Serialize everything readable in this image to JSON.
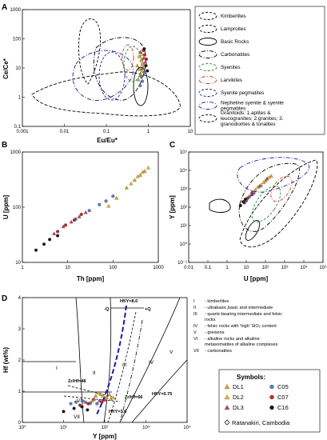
{
  "chart_data": [
    {
      "panel": "A",
      "type": "scatter",
      "xlabel": "Eu/Eu*",
      "ylabel": "Ce/Ce*",
      "x_scale": "log",
      "y_scale": "log",
      "xlim": [
        0.001,
        10
      ],
      "ylim": [
        0.1,
        1000
      ],
      "x_ticks": [
        "0.001",
        "0.01",
        "0.1",
        "1",
        "10"
      ],
      "y_ticks": [
        "0.1",
        "1",
        "10",
        "100",
        "1000"
      ],
      "field_labels": [
        "1",
        "2",
        "3"
      ],
      "legend": [
        {
          "label": "Kimberlites",
          "style": "dashed",
          "color": "#000000"
        },
        {
          "label": "Lamproites",
          "style": "dashed",
          "color": "#000000"
        },
        {
          "label": "Basic Rocks",
          "style": "solid",
          "color": "#000000"
        },
        {
          "label": "Carbonatites",
          "style": "dashdot",
          "color": "#000000"
        },
        {
          "label": "Syenites",
          "style": "dashed",
          "color": "#2a8a3a"
        },
        {
          "label": "Larvikites",
          "style": "dashdot",
          "color": "#c0392b"
        },
        {
          "label": "Syenite pegmatites",
          "style": "dashed",
          "color": "#1a1a9a"
        },
        {
          "label": "Nepheline syenite & syenite pegmatites",
          "style": "dashdot",
          "color": "#1a1a9a"
        },
        {
          "label": "Granitoids: 1.aplites & leucogranites; 2.granites; 3. granodiorites & tonalites",
          "style": "dashed",
          "color": "#000000"
        }
      ],
      "series": [
        {
          "name": "DL1",
          "points": [
            [
              0.55,
              12
            ],
            [
              0.62,
              9
            ],
            [
              0.7,
              20
            ],
            [
              0.66,
              6
            ],
            [
              0.75,
              14
            ],
            [
              0.58,
              4
            ]
          ]
        },
        {
          "name": "DL2",
          "points": [
            [
              0.6,
              25
            ],
            [
              0.7,
              30
            ],
            [
              0.68,
              18
            ],
            [
              0.8,
              12
            ],
            [
              0.72,
              8
            ]
          ]
        },
        {
          "name": "DL3",
          "points": [
            [
              0.65,
              35
            ],
            [
              0.78,
              22
            ],
            [
              0.85,
              16
            ],
            [
              0.74,
              10
            ]
          ]
        },
        {
          "name": "C05",
          "points": [
            [
              0.68,
              5
            ],
            [
              0.72,
              3.5
            ],
            [
              0.8,
              7
            ],
            [
              0.64,
              2.5
            ]
          ]
        },
        {
          "name": "C07",
          "points": [
            [
              0.82,
              28
            ],
            [
              0.9,
              20
            ],
            [
              0.76,
              40
            ]
          ]
        },
        {
          "name": "C16",
          "points": [
            [
              0.88,
              12
            ],
            [
              0.95,
              8
            ],
            [
              0.8,
              45
            ]
          ]
        }
      ]
    },
    {
      "panel": "B",
      "type": "scatter",
      "xlabel": "Th [ppm]",
      "ylabel": "U [ppm]",
      "x_scale": "log",
      "y_scale": "log",
      "xlim": [
        1,
        1000
      ],
      "ylim": [
        5,
        1000
      ],
      "x_ticks": [
        "1",
        "10",
        "100",
        "1000"
      ],
      "y_ticks": [
        "10",
        "100",
        "1000"
      ],
      "series": [
        {
          "name": "DL1",
          "points": [
            [
              120,
              110
            ],
            [
              200,
              180
            ],
            [
              300,
              260
            ],
            [
              400,
              330
            ],
            [
              500,
              400
            ]
          ]
        },
        {
          "name": "DL2",
          "points": [
            [
              250,
              220
            ],
            [
              350,
              310
            ],
            [
              450,
              380
            ],
            [
              600,
              470
            ],
            [
              80,
              75
            ]
          ]
        },
        {
          "name": "DL3",
          "points": [
            [
              5,
              20
            ],
            [
              8,
              28
            ],
            [
              12,
              35
            ],
            [
              18,
              45
            ],
            [
              25,
              55
            ]
          ]
        },
        {
          "name": "C05",
          "points": [
            [
              15,
              40
            ],
            [
              30,
              60
            ],
            [
              50,
              80
            ],
            [
              70,
              95
            ],
            [
              100,
              120
            ]
          ]
        },
        {
          "name": "C07",
          "points": [
            [
              6,
              22
            ],
            [
              9,
              30
            ],
            [
              14,
              38
            ],
            [
              20,
              50
            ]
          ]
        },
        {
          "name": "C16",
          "points": [
            [
              2,
              9
            ],
            [
              3,
              12
            ],
            [
              4,
              15
            ],
            [
              6,
              18
            ]
          ]
        }
      ]
    },
    {
      "panel": "C",
      "type": "scatter",
      "xlabel": "U [ppm]",
      "ylabel": "Y [ppm]",
      "x_scale": "log",
      "y_scale": "log",
      "xlim": [
        0.01,
        100000
      ],
      "ylim": [
        0.01,
        100000
      ],
      "x_ticks": [
        "0.01",
        "0.1",
        "1",
        "10",
        "10²",
        "10³",
        "10⁴",
        "10⁵"
      ],
      "y_ticks": [
        "10⁻¹",
        "10⁰",
        "10¹",
        "10²",
        "10³",
        "10⁴",
        "10⁵"
      ],
      "series": [
        {
          "name": "DL1",
          "points": [
            [
              30,
              400
            ],
            [
              60,
              800
            ],
            [
              100,
              1500
            ],
            [
              200,
              3000
            ]
          ]
        },
        {
          "name": "DL2",
          "points": [
            [
              40,
              600
            ],
            [
              80,
              1200
            ],
            [
              150,
              2500
            ]
          ]
        },
        {
          "name": "DL3",
          "points": [
            [
              20,
              300
            ],
            [
              50,
              700
            ],
            [
              120,
              2000
            ]
          ]
        },
        {
          "name": "C05",
          "points": [
            [
              10,
              80
            ],
            [
              15,
              150
            ],
            [
              25,
              250
            ]
          ]
        },
        {
          "name": "C07",
          "points": [
            [
              8,
              60
            ],
            [
              12,
              120
            ],
            [
              20,
              200
            ]
          ]
        },
        {
          "name": "C16",
          "points": [
            [
              5,
              40
            ],
            [
              7,
              70
            ],
            [
              9,
              100
            ]
          ]
        }
      ]
    },
    {
      "panel": "D",
      "type": "scatter",
      "xlabel": "Y [ppm]",
      "ylabel": "Hf (wt%)",
      "x_scale": "log",
      "y_scale": "linear",
      "xlim": [
        1,
        10000
      ],
      "ylim": [
        0,
        4
      ],
      "x_ticks": [
        "10⁰",
        "10¹",
        "10²",
        "10³",
        "10⁴"
      ],
      "y_ticks": [
        "0",
        "1",
        "2",
        "3",
        "4"
      ],
      "field_labels": [
        "I",
        "II",
        "III",
        "IV",
        "V",
        "VI",
        "VII"
      ],
      "annotations": [
        "Hf/Y=8.0",
        "-Q",
        "+Q",
        "Zr/Hf=48",
        "Zr/Hf=66",
        "Hf/Y=0.75",
        "Hf/Y=3.6"
      ],
      "notes": [
        {
          "num": "I",
          "text": "- kimberlites"
        },
        {
          "num": "II",
          "text": "- ultrabasic,basic and intermediate"
        },
        {
          "num": "III",
          "text": "- quartz-bearing intermediate and felsic rocks"
        },
        {
          "num": "IV",
          "text": "- felsic rocks with 'high' SiO₂ content"
        },
        {
          "num": "V",
          "text": "- greisens"
        },
        {
          "num": "VI",
          "text": "- alkaline rocks and alkaline metasomatites of alkaline complexes"
        },
        {
          "num": "VII",
          "text": "- carbonatites"
        }
      ],
      "series": [
        {
          "name": "DL1",
          "points": [
            [
              60,
              0.85
            ],
            [
              80,
              0.9
            ],
            [
              110,
              0.8
            ],
            [
              140,
              0.75
            ],
            [
              50,
              0.7
            ]
          ]
        },
        {
          "name": "DL2",
          "points": [
            [
              70,
              0.95
            ],
            [
              90,
              0.85
            ],
            [
              130,
              0.9
            ],
            [
              160,
              0.8
            ]
          ]
        },
        {
          "name": "DL3",
          "points": [
            [
              55,
              0.75
            ],
            [
              75,
              0.7
            ],
            [
              100,
              0.72
            ],
            [
              35,
              0.65
            ]
          ]
        },
        {
          "name": "C05",
          "points": [
            [
              20,
              0.65
            ],
            [
              30,
              0.68
            ],
            [
              45,
              0.62
            ],
            [
              65,
              0.6
            ],
            [
              15,
              0.6
            ]
          ]
        },
        {
          "name": "C07",
          "points": [
            [
              25,
              0.55
            ],
            [
              40,
              0.6
            ],
            [
              85,
              0.65
            ]
          ]
        },
        {
          "name": "C16",
          "points": [
            [
              10,
              0.35
            ],
            [
              18,
              0.45
            ],
            [
              28,
              0.5
            ],
            [
              38,
              0.4
            ]
          ]
        }
      ]
    }
  ],
  "panels": {
    "a": {
      "label": "A"
    },
    "b": {
      "label": "B"
    },
    "c": {
      "label": "C"
    },
    "d": {
      "label": "D"
    }
  },
  "symbols_box": {
    "title": "Symbols:",
    "items": [
      {
        "name": "DL1",
        "color": "#e8a020",
        "shape": "triangle"
      },
      {
        "name": "C05",
        "color": "#5b7fc0",
        "shape": "circle"
      },
      {
        "name": "DL2",
        "color": "#e8c020",
        "shape": "triangle"
      },
      {
        "name": "C07",
        "color": "#cc1f1f",
        "shape": "circle"
      },
      {
        "name": "DL3",
        "color": "#c04060",
        "shape": "triangle"
      },
      {
        "name": "C16",
        "color": "#111111",
        "shape": "circle"
      }
    ],
    "extra": "Ratanakiri, Cambodia"
  }
}
